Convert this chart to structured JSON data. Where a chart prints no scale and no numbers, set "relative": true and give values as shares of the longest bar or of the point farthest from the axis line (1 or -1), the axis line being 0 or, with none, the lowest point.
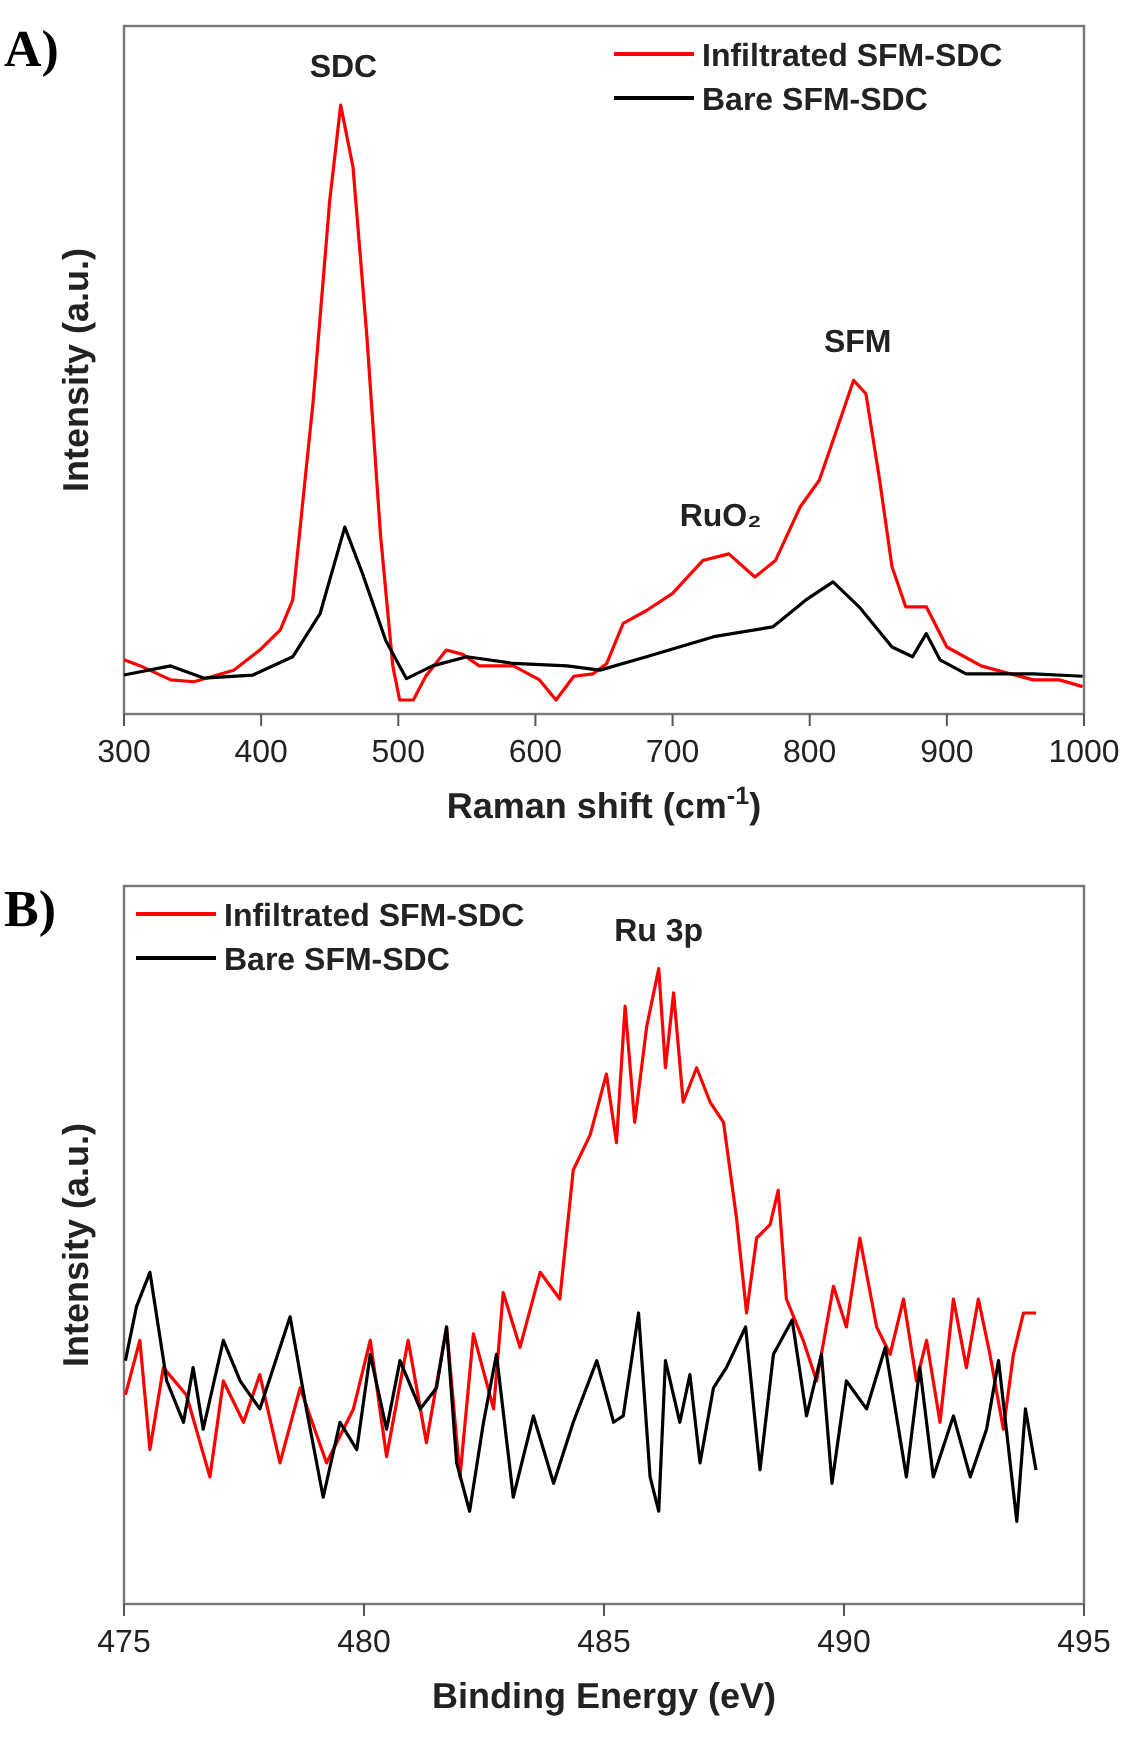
{
  "chart_data": [
    {
      "type": "line",
      "title": "A)",
      "xlabel": "Raman shift (cm$^{-1}$)",
      "ylabel": "Intensity (a.u.)",
      "relative": true,
      "xlim": [
        300,
        1000
      ],
      "xticks": [
        300,
        400,
        500,
        600,
        700,
        800,
        900,
        1000
      ],
      "legend": "top right",
      "tick_labels": "x",
      "annotations": [
        {
          "text": "SDC",
          "x": 460,
          "y": 1
        },
        {
          "text": "SFM",
          "x": 835,
          "y": 0.548
        },
        {
          "text": "RuO₂",
          "x": 735,
          "y": 0.263
        }
      ],
      "series": [
        {
          "name": "Infiltrated SFM-SDC",
          "color": "#ff0000",
          "x": [
            300,
            312,
            334,
            351,
            380,
            399,
            414,
            423,
            438,
            450,
            458,
            467,
            477,
            487,
            496,
            501,
            511,
            520,
            535,
            547,
            559,
            584,
            603,
            615,
            628,
            642,
            652,
            664,
            681,
            700,
            722,
            741,
            760,
            775,
            793,
            807,
            822,
            832,
            841,
            851,
            860,
            870,
            885,
            900,
            925,
            963,
            982,
            999
          ],
          "values": [
            0.089,
            0.079,
            0.056,
            0.053,
            0.072,
            0.105,
            0.138,
            0.187,
            0.515,
            0.843,
            1,
            0.898,
            0.623,
            0.295,
            0.079,
            0.023,
            0.023,
            0.062,
            0.105,
            0.098,
            0.079,
            0.079,
            0.056,
            0.023,
            0.062,
            0.066,
            0.083,
            0.149,
            0.17,
            0.198,
            0.252,
            0.263,
            0.225,
            0.252,
            0.34,
            0.384,
            0.482,
            0.548,
            0.526,
            0.384,
            0.242,
            0.176,
            0.176,
            0.11,
            0.079,
            0.056,
            0.056,
            0.045
          ]
        },
        {
          "name": "Bare SFM-SDC",
          "color": "#000000",
          "x": [
            300,
            334,
            358,
            394,
            423,
            443,
            461,
            474,
            491,
            506,
            525,
            550,
            584,
            623,
            647,
            681,
            730,
            773,
            797,
            817,
            836,
            860,
            875,
            885,
            895,
            914,
            963,
            999
          ],
          "values": [
            0.064,
            0.079,
            0.059,
            0.064,
            0.094,
            0.165,
            0.307,
            0.23,
            0.12,
            0.058,
            0.079,
            0.094,
            0.083,
            0.079,
            0.072,
            0.094,
            0.127,
            0.143,
            0.187,
            0.217,
            0.176,
            0.11,
            0.094,
            0.132,
            0.089,
            0.066,
            0.066,
            0.062
          ]
        }
      ]
    },
    {
      "type": "line",
      "title": "B)",
      "xlabel": "Binding Energy (eV)",
      "ylabel": "Intensity (a.u.)",
      "relative": true,
      "xlim": [
        475,
        495
      ],
      "xticks": [
        475,
        480,
        485,
        490,
        495
      ],
      "legend": "top left",
      "tick_labels": "x",
      "annotations": [
        {
          "text": "Ru 3p",
          "x": 486.14,
          "y": 1
        }
      ],
      "series": [
        {
          "name": "Infiltrated SFM-SDC",
          "color": "#ff0000",
          "x": [
            475.03,
            475.33,
            475.54,
            475.82,
            476.3,
            476.79,
            477.07,
            477.49,
            477.83,
            478.25,
            478.67,
            479.22,
            479.78,
            480.13,
            480.47,
            480.92,
            481.3,
            481.72,
            482.0,
            482.28,
            482.7,
            482.9,
            483.25,
            483.67,
            484.08,
            484.36,
            484.71,
            485.05,
            485.26,
            485.44,
            485.64,
            485.89,
            486.14,
            486.28,
            486.45,
            486.65,
            486.93,
            487.21,
            487.49,
            487.76,
            487.97,
            488.18,
            488.46,
            488.63,
            488.8,
            489.15,
            489.43,
            489.78,
            490.05,
            490.33,
            490.68,
            490.96,
            491.24,
            491.51,
            491.72,
            492.0,
            492.28,
            492.55,
            492.8,
            493.04,
            493.32,
            493.53,
            493.74,
            494.0
          ],
          "values": [
            0.329,
            0.415,
            0.243,
            0.372,
            0.329,
            0.2,
            0.351,
            0.286,
            0.361,
            0.222,
            0.34,
            0.222,
            0.307,
            0.415,
            0.232,
            0.415,
            0.254,
            0.436,
            0.2,
            0.425,
            0.307,
            0.49,
            0.404,
            0.522,
            0.48,
            0.683,
            0.738,
            0.834,
            0.726,
            0.941,
            0.758,
            0.909,
            1,
            0.844,
            0.962,
            0.79,
            0.844,
            0.79,
            0.758,
            0.608,
            0.458,
            0.576,
            0.597,
            0.651,
            0.48,
            0.415,
            0.351,
            0.5,
            0.436,
            0.576,
            0.436,
            0.393,
            0.48,
            0.351,
            0.415,
            0.286,
            0.48,
            0.372,
            0.48,
            0.393,
            0.275,
            0.393,
            0.458,
            0.458
          ]
        },
        {
          "name": "Bare SFM-SDC",
          "color": "#000000",
          "x": [
            475.03,
            475.26,
            475.54,
            475.89,
            476.24,
            476.44,
            476.65,
            477.07,
            477.42,
            477.83,
            478.46,
            478.8,
            479.15,
            479.5,
            479.85,
            480.13,
            480.47,
            480.75,
            481.17,
            481.51,
            481.72,
            481.93,
            482.2,
            482.49,
            482.76,
            483.11,
            483.53,
            483.95,
            484.36,
            484.85,
            485.2,
            485.4,
            485.72,
            485.96,
            486.14,
            486.28,
            486.58,
            486.79,
            487.0,
            487.28,
            487.55,
            487.95,
            488.25,
            488.53,
            488.92,
            489.22,
            489.53,
            489.75,
            490.05,
            490.47,
            490.86,
            491.3,
            491.58,
            491.86,
            492.28,
            492.63,
            492.97,
            493.22,
            493.6,
            493.78,
            494.0
          ],
          "values": [
            0.383,
            0.468,
            0.522,
            0.351,
            0.286,
            0.372,
            0.275,
            0.415,
            0.351,
            0.307,
            0.452,
            0.307,
            0.168,
            0.286,
            0.243,
            0.393,
            0.275,
            0.383,
            0.307,
            0.34,
            0.436,
            0.222,
            0.146,
            0.286,
            0.393,
            0.168,
            0.296,
            0.19,
            0.286,
            0.383,
            0.286,
            0.296,
            0.458,
            0.2,
            0.146,
            0.383,
            0.286,
            0.361,
            0.222,
            0.34,
            0.372,
            0.436,
            0.211,
            0.393,
            0.447,
            0.296,
            0.393,
            0.19,
            0.351,
            0.307,
            0.404,
            0.2,
            0.372,
            0.2,
            0.296,
            0.2,
            0.275,
            0.383,
            0.13,
            0.307,
            0.211
          ]
        }
      ]
    }
  ]
}
